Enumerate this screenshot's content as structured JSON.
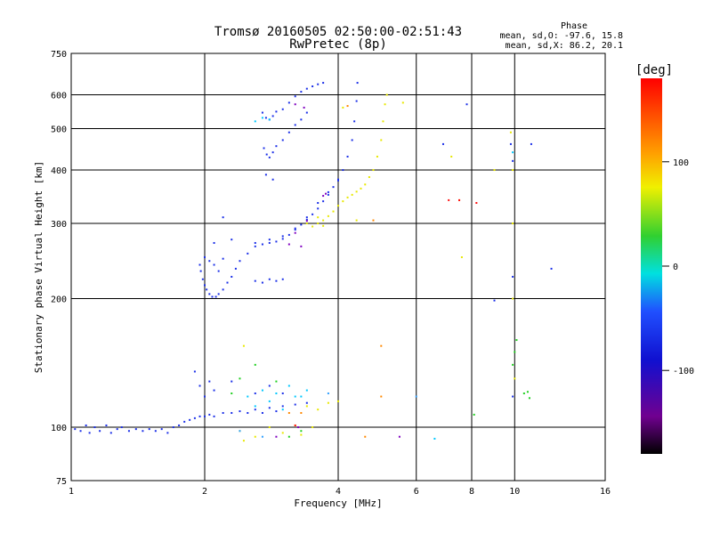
{
  "chart_data": {
    "type": "scatter",
    "title": "Tromsø 20160505 02:50:00-02:51:43",
    "subtitle": "RwPretec (8p)",
    "xlabel": "Frequency [MHz]",
    "ylabel": "Stationary phase Virtual Height [km]",
    "x_scale": "log",
    "y_scale": "log",
    "xlim": [
      1,
      16
    ],
    "ylim": [
      75,
      750
    ],
    "x_ticks": [
      1,
      2,
      4,
      6,
      8,
      10,
      16
    ],
    "x_tick_labels": [
      "1",
      "2",
      "4",
      "6",
      "8",
      "10",
      "16"
    ],
    "y_ticks": [
      75,
      100,
      200,
      300,
      400,
      500,
      600,
      750
    ],
    "y_tick_labels": [
      "75",
      "100",
      "200",
      "300",
      "400",
      "500",
      "600",
      "750"
    ],
    "grid": true,
    "stats": {
      "heading": "Phase",
      "line1": "mean, sd,O: -97.6, 15.8",
      "line2": "mean, sd,X:  86.2, 20.1"
    },
    "colorbar": {
      "label": "[deg]",
      "min": -180,
      "max": 180,
      "ticks": [
        100,
        0,
        -100
      ],
      "tick_labels": [
        "100",
        "0",
        "-100"
      ]
    },
    "series": [
      {
        "marker_color": "#1c30e8",
        "points": [
          [
            1.02,
            99
          ],
          [
            1.05,
            98
          ],
          [
            1.08,
            101
          ],
          [
            1.1,
            97
          ],
          [
            1.13,
            100
          ],
          [
            1.16,
            98
          ],
          [
            1.2,
            101
          ],
          [
            1.23,
            97
          ],
          [
            1.27,
            99
          ],
          [
            1.3,
            100
          ],
          [
            1.35,
            98
          ],
          [
            1.4,
            99
          ],
          [
            1.45,
            98
          ],
          [
            1.5,
            99
          ],
          [
            1.55,
            98
          ],
          [
            1.6,
            99
          ],
          [
            1.65,
            97
          ],
          [
            1.7,
            100
          ],
          [
            1.75,
            101
          ],
          [
            1.8,
            103
          ],
          [
            1.85,
            104
          ],
          [
            1.9,
            105
          ],
          [
            1.95,
            106
          ],
          [
            2.0,
            106
          ],
          [
            2.05,
            107
          ],
          [
            2.1,
            106
          ],
          [
            2.2,
            108
          ],
          [
            2.3,
            108
          ],
          [
            2.4,
            109
          ],
          [
            2.5,
            108
          ],
          [
            2.6,
            110
          ],
          [
            2.7,
            108
          ],
          [
            2.8,
            111
          ],
          [
            2.9,
            109
          ],
          [
            3.0,
            112
          ],
          [
            3.2,
            113
          ],
          [
            3.4,
            114
          ],
          [
            1.9,
            135
          ],
          [
            1.95,
            125
          ],
          [
            2.0,
            118
          ],
          [
            2.05,
            128
          ],
          [
            2.1,
            122
          ],
          [
            2.3,
            128
          ],
          [
            2.6,
            120
          ],
          [
            2.8,
            125
          ],
          [
            3.0,
            120
          ],
          [
            1.95,
            240
          ],
          [
            1.96,
            232
          ],
          [
            1.98,
            222
          ],
          [
            2.0,
            215
          ],
          [
            2.02,
            210
          ],
          [
            2.05,
            205
          ],
          [
            2.08,
            202
          ],
          [
            2.12,
            202
          ],
          [
            2.15,
            205
          ],
          [
            2.2,
            210
          ],
          [
            2.25,
            218
          ],
          [
            2.3,
            225
          ],
          [
            2.35,
            235
          ],
          [
            2.4,
            245
          ],
          [
            2.5,
            255
          ],
          [
            2.6,
            265
          ],
          [
            2.7,
            268
          ],
          [
            2.8,
            270
          ],
          [
            2.9,
            272
          ],
          [
            3.0,
            276
          ],
          [
            3.1,
            282
          ],
          [
            3.2,
            290
          ],
          [
            3.3,
            298
          ],
          [
            3.4,
            306
          ],
          [
            3.5,
            315
          ],
          [
            3.6,
            325
          ],
          [
            3.7,
            338
          ],
          [
            3.8,
            350
          ],
          [
            3.9,
            365
          ],
          [
            4.0,
            380
          ],
          [
            4.1,
            400
          ],
          [
            4.2,
            430
          ],
          [
            4.3,
            470
          ],
          [
            4.35,
            520
          ],
          [
            4.4,
            580
          ],
          [
            4.42,
            640
          ],
          [
            2.6,
            270
          ],
          [
            2.8,
            275
          ],
          [
            3.0,
            280
          ],
          [
            3.2,
            292
          ],
          [
            3.4,
            310
          ],
          [
            3.6,
            335
          ],
          [
            3.8,
            355
          ],
          [
            4.0,
            378
          ],
          [
            2.0,
            250
          ],
          [
            2.05,
            245
          ],
          [
            2.1,
            240
          ],
          [
            2.15,
            232
          ],
          [
            2.2,
            248
          ],
          [
            2.6,
            220
          ],
          [
            2.7,
            218
          ],
          [
            2.8,
            222
          ],
          [
            2.9,
            220
          ],
          [
            3.0,
            222
          ],
          [
            2.7,
            545
          ],
          [
            2.75,
            530
          ],
          [
            2.8,
            525
          ],
          [
            2.85,
            535
          ],
          [
            2.9,
            548
          ],
          [
            3.0,
            555
          ],
          [
            3.1,
            575
          ],
          [
            3.2,
            595
          ],
          [
            3.3,
            610
          ],
          [
            3.4,
            620
          ],
          [
            3.5,
            628
          ],
          [
            3.6,
            635
          ],
          [
            3.7,
            640
          ],
          [
            2.72,
            450
          ],
          [
            2.76,
            435
          ],
          [
            2.8,
            428
          ],
          [
            2.85,
            440
          ],
          [
            2.9,
            455
          ],
          [
            3.0,
            470
          ],
          [
            3.1,
            490
          ],
          [
            3.2,
            510
          ],
          [
            3.3,
            525
          ],
          [
            3.4,
            545
          ],
          [
            2.2,
            310
          ],
          [
            2.1,
            270
          ],
          [
            2.3,
            275
          ],
          [
            2.75,
            390
          ],
          [
            2.85,
            380
          ],
          [
            6.9,
            460
          ],
          [
            7.8,
            570
          ],
          [
            9.8,
            460
          ],
          [
            9.9,
            420
          ],
          [
            10.9,
            460
          ],
          [
            12.1,
            235
          ],
          [
            9.9,
            225
          ],
          [
            9.0,
            198
          ],
          [
            9.9,
            118
          ]
        ]
      },
      {
        "marker_color": "#00c8ff",
        "points": [
          [
            2.5,
            118
          ],
          [
            2.7,
            122
          ],
          [
            2.9,
            120
          ],
          [
            3.1,
            125
          ],
          [
            3.3,
            118
          ],
          [
            2.6,
            112
          ],
          [
            2.8,
            115
          ],
          [
            3.0,
            110
          ],
          [
            3.2,
            118
          ],
          [
            3.4,
            122
          ],
          [
            2.7,
            530
          ],
          [
            2.8,
            525
          ],
          [
            2.6,
            520
          ],
          [
            6.6,
            94
          ],
          [
            9.9,
            440
          ]
        ]
      },
      {
        "marker_color": "#e8e800",
        "points": [
          [
            3.5,
            295
          ],
          [
            3.6,
            300
          ],
          [
            3.7,
            305
          ],
          [
            3.8,
            312
          ],
          [
            3.9,
            320
          ],
          [
            4.0,
            330
          ],
          [
            4.1,
            338
          ],
          [
            4.2,
            345
          ],
          [
            4.3,
            350
          ],
          [
            4.4,
            356
          ],
          [
            4.5,
            362
          ],
          [
            4.6,
            370
          ],
          [
            4.7,
            385
          ],
          [
            4.8,
            400
          ],
          [
            4.9,
            430
          ],
          [
            5.0,
            470
          ],
          [
            5.05,
            520
          ],
          [
            5.1,
            570
          ],
          [
            5.15,
            600
          ],
          [
            3.4,
            300
          ],
          [
            3.7,
            296
          ],
          [
            3.6,
            310
          ],
          [
            2.4,
            98
          ],
          [
            2.6,
            95
          ],
          [
            2.8,
            100
          ],
          [
            3.0,
            97
          ],
          [
            3.2,
            101
          ],
          [
            3.3,
            96
          ],
          [
            3.5,
            100
          ],
          [
            5.6,
            575
          ],
          [
            7.2,
            430
          ],
          [
            7.6,
            250
          ],
          [
            9.0,
            400
          ],
          [
            9.8,
            490
          ],
          [
            9.9,
            400
          ],
          [
            9.9,
            300
          ],
          [
            9.9,
            200
          ],
          [
            10.0,
            130
          ],
          [
            3.4,
            112
          ],
          [
            3.6,
            110
          ],
          [
            3.8,
            114
          ],
          [
            4.0,
            115
          ],
          [
            2.45,
            155
          ],
          [
            2.45,
            93
          ],
          [
            4.4,
            305
          ],
          [
            4.1,
            560
          ]
        ]
      },
      {
        "marker_color": "#ff8800",
        "points": [
          [
            5.0,
            155
          ],
          [
            5.0,
            118
          ],
          [
            4.2,
            565
          ],
          [
            3.1,
            108
          ],
          [
            3.3,
            108
          ],
          [
            4.6,
            95
          ],
          [
            4.8,
            305
          ],
          [
            7.5,
            340
          ]
        ]
      },
      {
        "marker_color": "#ff1010",
        "points": [
          [
            7.1,
            340
          ],
          [
            7.5,
            340
          ],
          [
            3.2,
            101
          ],
          [
            8.2,
            335
          ]
        ]
      },
      {
        "marker_color": "#20d020",
        "points": [
          [
            2.4,
            130
          ],
          [
            2.6,
            140
          ],
          [
            2.9,
            128
          ],
          [
            3.1,
            95
          ],
          [
            3.3,
            98
          ],
          [
            10.1,
            160
          ],
          [
            9.9,
            140
          ],
          [
            10.5,
            120
          ],
          [
            10.7,
            121
          ],
          [
            10.8,
            117
          ],
          [
            8.1,
            107
          ],
          [
            10.0,
            150
          ],
          [
            2.3,
            120
          ]
        ]
      },
      {
        "marker_color": "#8000c0",
        "points": [
          [
            3.1,
            268
          ],
          [
            3.2,
            285
          ],
          [
            3.4,
            304
          ],
          [
            3.35,
            560
          ],
          [
            3.2,
            570
          ],
          [
            2.9,
            95
          ],
          [
            5.5,
            95
          ],
          [
            3.25,
            100
          ],
          [
            3.3,
            265
          ],
          [
            3.7,
            348
          ],
          [
            3.75,
            352
          ]
        ]
      },
      {
        "marker_color": "#30a0ff",
        "points": [
          [
            2.4,
            98
          ],
          [
            2.7,
            95
          ],
          [
            3.8,
            120
          ],
          [
            6.0,
            118
          ]
        ]
      }
    ]
  }
}
